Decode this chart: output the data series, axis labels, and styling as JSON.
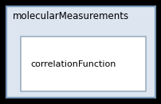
{
  "outer_label": "molecularMeasurements",
  "inner_label": "correlationFunction",
  "fig_bg": "#000000",
  "outer_bg": "#dce5f0",
  "outer_border": "#7a9ab8",
  "inner_bg": "#ffffff",
  "inner_border": "#9aafc0",
  "font_color": "#000000",
  "font_size": 8.5,
  "inner_font_size": 8.0,
  "fig_width": 2.03,
  "fig_height": 1.31,
  "dpi": 100
}
